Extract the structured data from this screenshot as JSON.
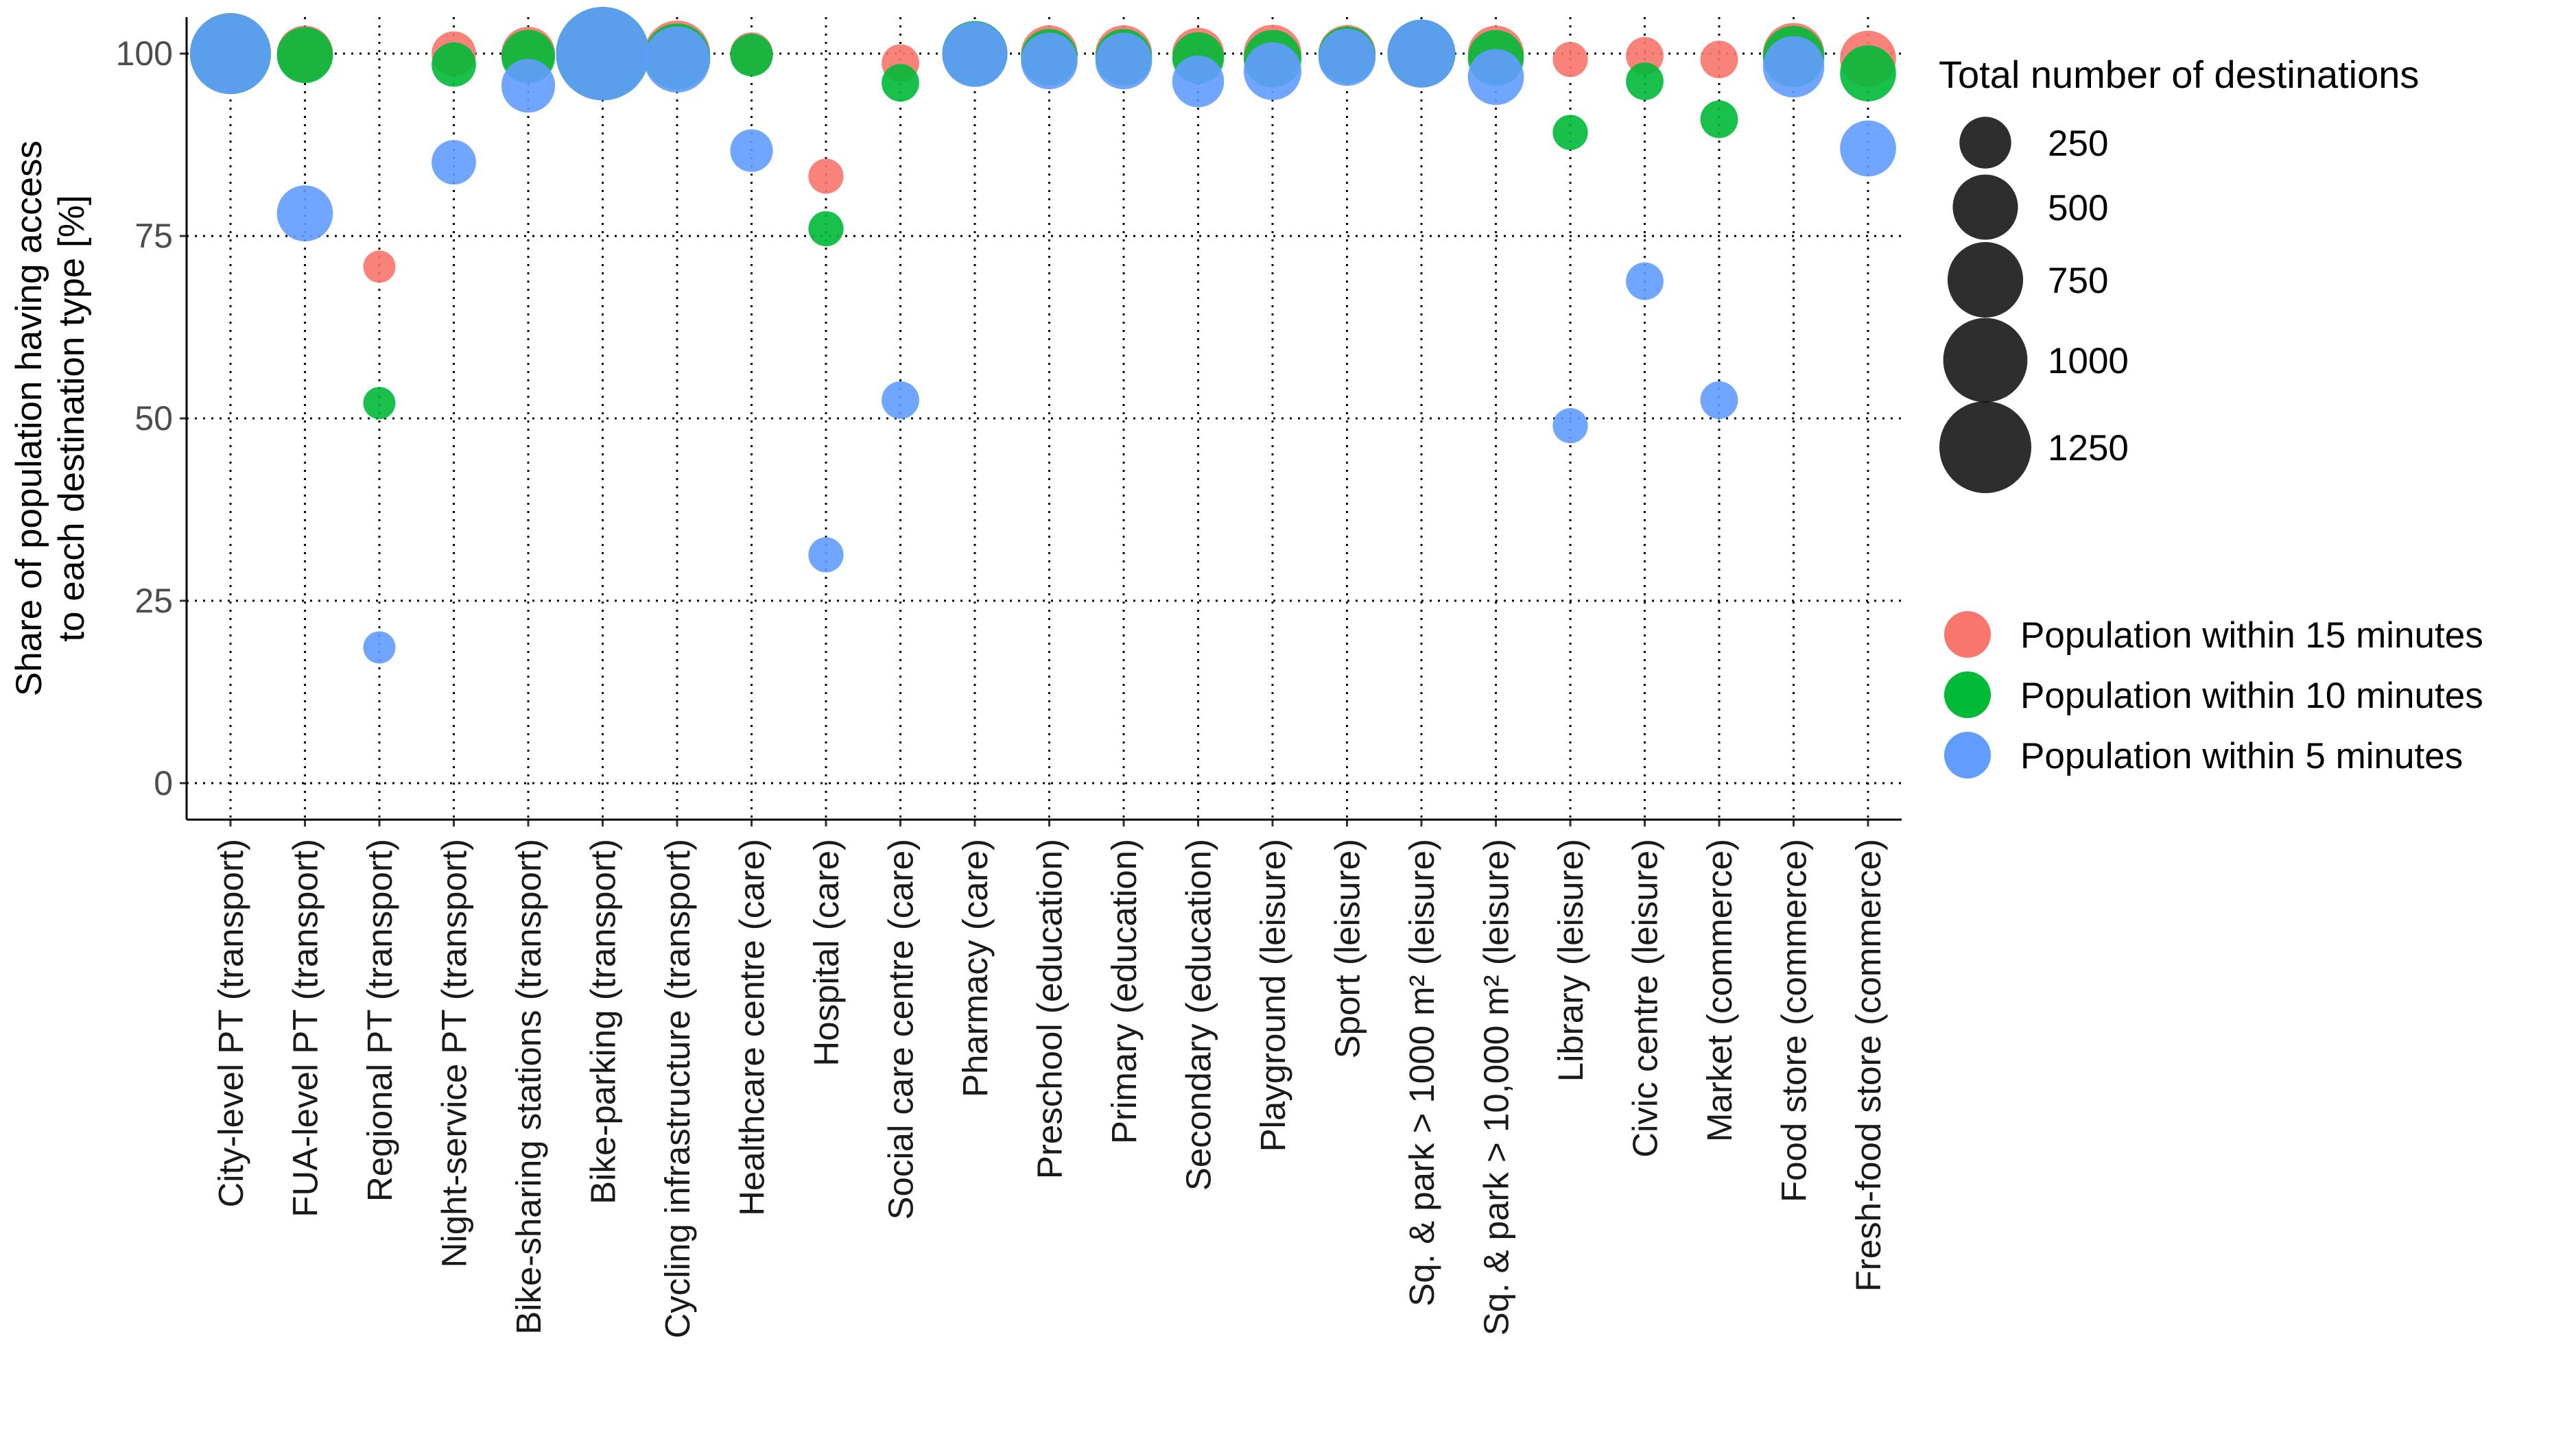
{
  "chart_data": {
    "type": "scatter",
    "ylabel_lines": [
      "Share of population having access",
      "to each destination type [%]"
    ],
    "ylim": [
      -5,
      105
    ],
    "y_ticks": [
      0,
      25,
      50,
      75,
      100
    ],
    "grid": true,
    "categories": [
      "City-level PT (transport)",
      "FUA-level PT (transport)",
      "Regional PT (transport)",
      "Night-service PT (transport)",
      "Bike-sharing stations (transport)",
      "Bike-parking (transport)",
      "Cycling infrastructure (transport)",
      "Healthcare centre (care)",
      "Hospital (care)",
      "Social care centre (care)",
      "Pharmacy (care)",
      "Preschool (education)",
      "Primary (education)",
      "Secondary (education)",
      "Playground (leisure)",
      "Sport (leisure)",
      "Sq. & park > 1000 m² (leisure)",
      "Sq. & park > 10,000 m² (leisure)",
      "Library (leisure)",
      "Civic centre (leisure)",
      "Market (commerce)",
      "Food store (commerce)",
      "Fresh-food store (commerce)"
    ],
    "size_values": [
      900,
      320,
      40,
      150,
      280,
      1300,
      520,
      130,
      60,
      80,
      500,
      330,
      330,
      250,
      350,
      340,
      560,
      320,
      60,
      80,
      80,
      420,
      320
    ],
    "series": [
      {
        "name": "Population within 15 minutes",
        "color": "#F8766D",
        "values": [
          100,
          100,
          70.8,
          100,
          100,
          100,
          100,
          100,
          83.2,
          98.7,
          100,
          100,
          100,
          100,
          100,
          100,
          100,
          100,
          99.2,
          99.7,
          99.2,
          100,
          99.3
        ]
      },
      {
        "name": "Population within 10 minutes",
        "color": "#00BA38",
        "values": [
          100,
          99.8,
          52.1,
          98.5,
          99.6,
          100,
          99.6,
          99.8,
          76.0,
          96.0,
          100,
          99.5,
          99.5,
          99.4,
          99.3,
          99.8,
          100,
          99.4,
          89.2,
          96.2,
          91.0,
          99.6,
          97.3
        ]
      },
      {
        "name": "Population within 5 minutes",
        "color": "#619CFF",
        "values": [
          100,
          78.1,
          18.6,
          85.1,
          95.6,
          100,
          99.2,
          86.7,
          31.3,
          52.5,
          99.9,
          99.0,
          99.0,
          96.2,
          97.6,
          99.5,
          100,
          96.8,
          49.0,
          68.8,
          52.5,
          98.2,
          87.0
        ]
      }
    ],
    "size_legend": {
      "title": "Total number of destinations",
      "values": [
        250,
        500,
        750,
        1000,
        1250
      ],
      "labels": [
        "250",
        "500",
        "750",
        "1000",
        "1250"
      ]
    },
    "color_legend": {
      "labels": [
        "Population within 15 minutes",
        "Population within 10 minutes",
        "Population within 5 minutes"
      ],
      "colors": [
        "#F8766D",
        "#00BA38",
        "#619CFF"
      ]
    },
    "marker_fill_overlap": "#00A5D9",
    "legend_position": "right"
  }
}
